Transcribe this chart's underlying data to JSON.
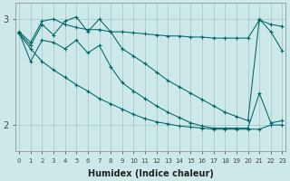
{
  "xlabel": "Humidex (Indice chaleur)",
  "bg_color": "#cce8e8",
  "line_color": "#006666",
  "grid_color": "#aacccc",
  "x_ticks": [
    0,
    1,
    2,
    3,
    4,
    5,
    6,
    7,
    8,
    9,
    10,
    11,
    12,
    13,
    14,
    15,
    16,
    17,
    18,
    19,
    20,
    21,
    22,
    23
  ],
  "y_ticks": [
    2.0,
    3.0
  ],
  "ylim": [
    1.75,
    3.15
  ],
  "xlim": [
    -0.3,
    23.3
  ],
  "upper_line": [
    2.88,
    2.78,
    2.98,
    3.0,
    2.95,
    2.92,
    2.9,
    2.9,
    2.88,
    2.88,
    2.87,
    2.86,
    2.85,
    2.84,
    2.84,
    2.83,
    2.83,
    2.82,
    2.82,
    2.82,
    2.82,
    2.99,
    2.95,
    2.93
  ],
  "lower_diagonal": [
    2.86,
    2.72,
    2.6,
    2.52,
    2.45,
    2.38,
    2.32,
    2.25,
    2.2,
    2.15,
    2.1,
    2.06,
    2.03,
    2.01,
    1.99,
    1.98,
    1.97,
    1.96,
    1.96,
    1.96,
    1.96,
    1.96,
    2.0,
    2.0
  ],
  "zigzag1": [
    2.87,
    2.75,
    2.95,
    2.85,
    2.98,
    3.02,
    2.88,
    3.0,
    2.88,
    2.72,
    2.65,
    2.58,
    2.5,
    2.42,
    2.36,
    2.3,
    2.24,
    2.18,
    2.12,
    2.08,
    2.04,
    3.0,
    2.88,
    2.7
  ],
  "zigzag2": [
    2.87,
    2.6,
    2.8,
    2.78,
    2.72,
    2.8,
    2.68,
    2.75,
    2.55,
    2.4,
    2.32,
    2.25,
    2.18,
    2.12,
    2.07,
    2.02,
    1.99,
    1.97,
    1.97,
    1.97,
    1.97,
    2.3,
    2.02,
    2.04
  ]
}
